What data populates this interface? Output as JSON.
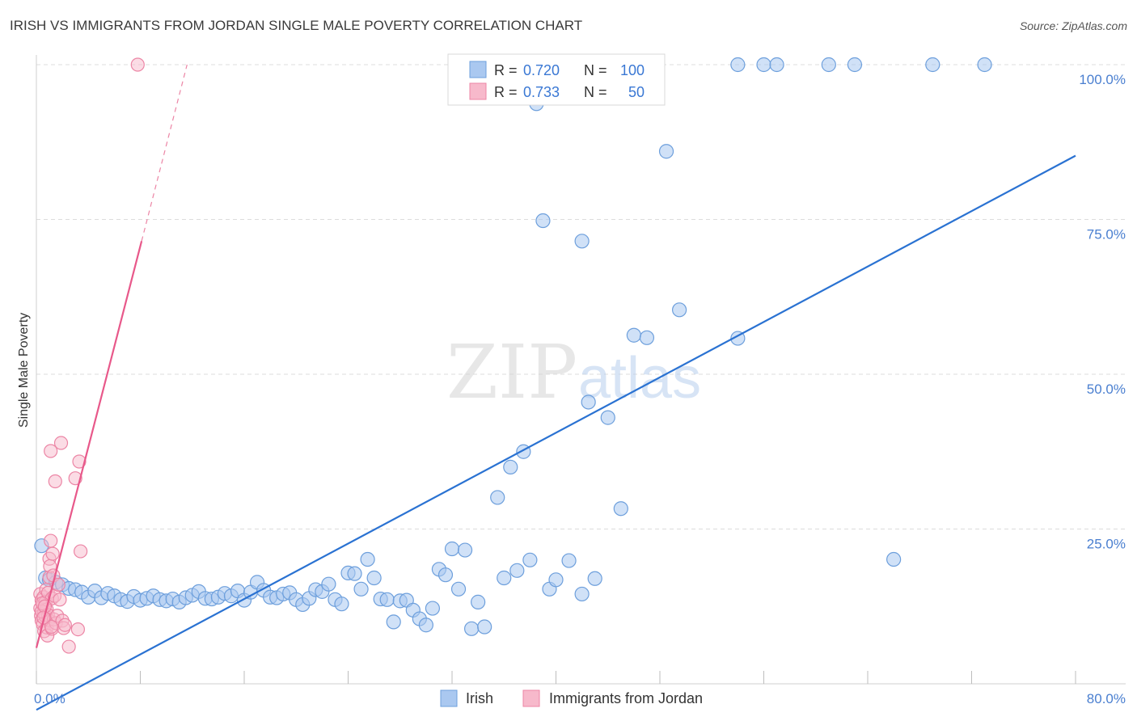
{
  "title": "IRISH VS IMMIGRANTS FROM JORDAN SINGLE MALE POVERTY CORRELATION CHART",
  "source": "Source: ZipAtlas.com",
  "colors": {
    "irish_fill": "#aac8f0",
    "irish_stroke": "#6d9fdc",
    "irish_line": "#2a72d2",
    "jordan_fill": "#f7b9cb",
    "jordan_stroke": "#ec85a5",
    "jordan_line": "#e8588a",
    "tick_text": "#4a7fd0",
    "grid": "#dcdcdc"
  },
  "chart_data": {
    "type": "scatter",
    "title": "IRISH VS IMMIGRANTS FROM JORDAN SINGLE MALE POVERTY CORRELATION CHART",
    "xlabel": "",
    "ylabel": "Single Male Poverty",
    "xlim": [
      0,
      80
    ],
    "ylim": [
      0,
      100
    ],
    "x_tick_labels": [
      "0.0%",
      "80.0%"
    ],
    "y_ticks": [
      25,
      50,
      75,
      100
    ],
    "y_tick_labels": [
      "25.0%",
      "50.0%",
      "75.0%",
      "100.0%"
    ],
    "grid": true,
    "watermark": "ZIPatlas",
    "legend": {
      "position": "top-center",
      "entries": [
        {
          "series": "Irish",
          "r_label": "R =",
          "r_value": "0.720",
          "n_label": "N =",
          "n_value": "100"
        },
        {
          "series": "Immigrants from Jordan",
          "r_label": "R =",
          "r_value": "0.733",
          "n_label": "N =",
          "n_value": "50"
        }
      ]
    },
    "series": [
      {
        "name": "Irish",
        "trend": {
          "x": [
            0,
            80
          ],
          "y": [
            -4.2,
            85.3
          ]
        },
        "points": [
          [
            0.4,
            22.3
          ],
          [
            0.7,
            17.1
          ],
          [
            1.0,
            16.8
          ],
          [
            1.5,
            16.4
          ],
          [
            2.0,
            16.0
          ],
          [
            2.5,
            15.4
          ],
          [
            3.0,
            15.2
          ],
          [
            3.5,
            14.8
          ],
          [
            4.0,
            14.0
          ],
          [
            4.5,
            15.0
          ],
          [
            5.0,
            13.9
          ],
          [
            5.5,
            14.6
          ],
          [
            6.0,
            14.2
          ],
          [
            6.5,
            13.6
          ],
          [
            7.0,
            13.3
          ],
          [
            7.5,
            14.1
          ],
          [
            8.0,
            13.5
          ],
          [
            8.5,
            13.8
          ],
          [
            9.0,
            14.2
          ],
          [
            9.5,
            13.6
          ],
          [
            10.0,
            13.4
          ],
          [
            10.5,
            13.7
          ],
          [
            11.0,
            13.2
          ],
          [
            11.5,
            13.9
          ],
          [
            12.0,
            14.3
          ],
          [
            12.5,
            14.9
          ],
          [
            13.0,
            13.8
          ],
          [
            13.5,
            13.7
          ],
          [
            14.0,
            14.0
          ],
          [
            14.5,
            14.6
          ],
          [
            15.0,
            14.2
          ],
          [
            15.5,
            15.0
          ],
          [
            16.0,
            13.5
          ],
          [
            16.5,
            14.8
          ],
          [
            17.0,
            16.4
          ],
          [
            17.5,
            15.1
          ],
          [
            18.0,
            14.0
          ],
          [
            18.5,
            13.9
          ],
          [
            19.0,
            14.5
          ],
          [
            19.5,
            14.7
          ],
          [
            20.0,
            13.6
          ],
          [
            20.5,
            12.8
          ],
          [
            21.0,
            13.8
          ],
          [
            21.5,
            15.2
          ],
          [
            22.0,
            14.9
          ],
          [
            22.5,
            16.1
          ],
          [
            23.0,
            13.6
          ],
          [
            23.5,
            12.9
          ],
          [
            24.0,
            17.9
          ],
          [
            24.5,
            17.8
          ],
          [
            25.0,
            15.3
          ],
          [
            25.5,
            20.1
          ],
          [
            26.0,
            17.1
          ],
          [
            26.5,
            13.7
          ],
          [
            27.0,
            13.6
          ],
          [
            27.5,
            10.0
          ],
          [
            28.0,
            13.4
          ],
          [
            28.5,
            13.5
          ],
          [
            29.0,
            11.9
          ],
          [
            29.5,
            10.5
          ],
          [
            30.0,
            9.5
          ],
          [
            30.5,
            12.2
          ],
          [
            31.0,
            18.5
          ],
          [
            31.5,
            17.6
          ],
          [
            32.0,
            21.8
          ],
          [
            32.5,
            15.3
          ],
          [
            33.0,
            21.6
          ],
          [
            33.5,
            8.9
          ],
          [
            34.0,
            13.2
          ],
          [
            34.5,
            9.2
          ],
          [
            35.5,
            30.1
          ],
          [
            36.0,
            17.1
          ],
          [
            36.5,
            35.0
          ],
          [
            37.0,
            18.3
          ],
          [
            37.5,
            37.5
          ],
          [
            38.0,
            20.0
          ],
          [
            38.5,
            93.7
          ],
          [
            39.0,
            74.8
          ],
          [
            39.5,
            15.3
          ],
          [
            40.0,
            16.8
          ],
          [
            41.0,
            19.9
          ],
          [
            42.0,
            71.5
          ],
          [
            42.0,
            14.5
          ],
          [
            42.5,
            45.5
          ],
          [
            43.0,
            17.0
          ],
          [
            44.0,
            43.0
          ],
          [
            45.0,
            28.3
          ],
          [
            46.0,
            56.3
          ],
          [
            47.0,
            55.9
          ],
          [
            48.5,
            86.0
          ],
          [
            49.5,
            60.4
          ],
          [
            54.0,
            55.8
          ],
          [
            54.0,
            100.0
          ],
          [
            56.0,
            100.0
          ],
          [
            57.0,
            100.0
          ],
          [
            61.0,
            100.0
          ],
          [
            63.0,
            100.0
          ],
          [
            66.0,
            20.1
          ],
          [
            69.0,
            100.0
          ],
          [
            73.0,
            100.0
          ]
        ]
      },
      {
        "name": "Immigrants from Jordan",
        "trend": {
          "x": [
            0,
            8.1
          ],
          "y": [
            5.8,
            71.5
          ]
        },
        "trend_dashed": {
          "x": [
            8.1,
            11.6
          ],
          "y": [
            71.5,
            100
          ]
        },
        "points": [
          [
            0.3,
            14.5
          ],
          [
            0.3,
            12.2
          ],
          [
            0.35,
            11.0
          ],
          [
            0.4,
            13.5
          ],
          [
            0.4,
            10.2
          ],
          [
            0.5,
            12.8
          ],
          [
            0.5,
            9.6
          ],
          [
            0.55,
            14.0
          ],
          [
            0.6,
            11.5
          ],
          [
            0.6,
            8.5
          ],
          [
            0.7,
            13.2
          ],
          [
            0.7,
            10.9
          ],
          [
            0.75,
            15.2
          ],
          [
            0.8,
            12.0
          ],
          [
            0.8,
            9.1
          ],
          [
            0.85,
            7.8
          ],
          [
            0.9,
            14.7
          ],
          [
            0.9,
            11.1
          ],
          [
            0.95,
            10.3
          ],
          [
            1.0,
            20.2
          ],
          [
            1.0,
            17.2
          ],
          [
            1.05,
            19.0
          ],
          [
            1.1,
            23.1
          ],
          [
            1.1,
            37.6
          ],
          [
            1.2,
            13.8
          ],
          [
            1.2,
            8.9
          ],
          [
            1.25,
            21.0
          ],
          [
            1.3,
            17.5
          ],
          [
            1.35,
            10.4
          ],
          [
            1.4,
            14.2
          ],
          [
            1.45,
            32.7
          ],
          [
            1.5,
            9.8
          ],
          [
            1.6,
            11.0
          ],
          [
            1.7,
            16.0
          ],
          [
            1.8,
            13.6
          ],
          [
            1.9,
            38.9
          ],
          [
            2.0,
            10.2
          ],
          [
            2.1,
            9.0
          ],
          [
            2.2,
            9.5
          ],
          [
            2.5,
            6.0
          ],
          [
            3.0,
            33.2
          ],
          [
            3.2,
            8.8
          ],
          [
            3.3,
            35.9
          ],
          [
            3.4,
            21.4
          ],
          [
            7.8,
            100.0
          ],
          [
            0.4,
            11.7
          ],
          [
            0.45,
            13.0
          ],
          [
            0.65,
            12.5
          ],
          [
            1.15,
            9.2
          ],
          [
            0.55,
            10.7
          ]
        ]
      }
    ]
  },
  "bottom_legend": [
    {
      "label": "Irish"
    },
    {
      "label": "Immigrants from Jordan"
    }
  ]
}
